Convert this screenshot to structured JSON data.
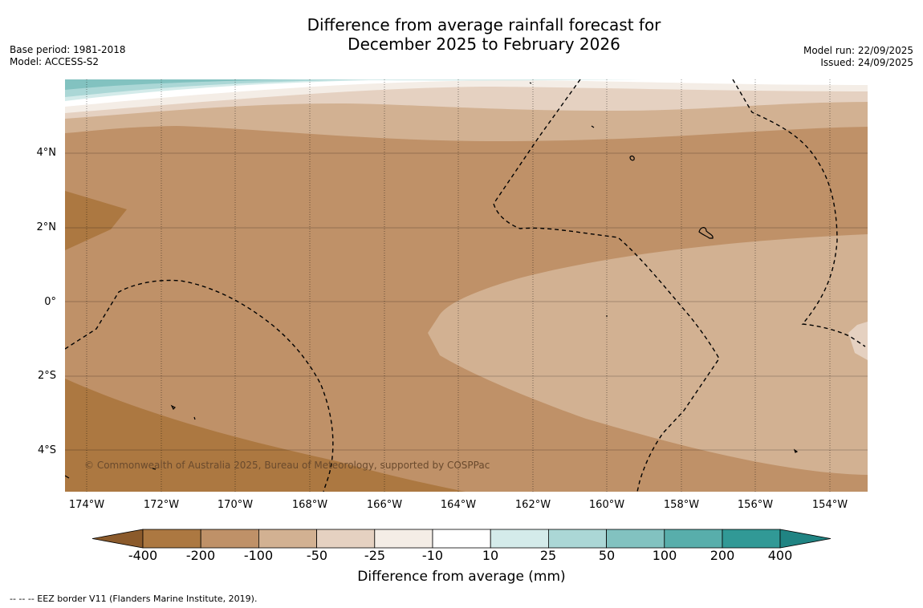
{
  "title": {
    "line1": "Difference from average rainfall forecast for",
    "line2": "December 2025 to February 2026"
  },
  "meta_left": {
    "base_period": "Base period: 1981-2018",
    "model": "Model: ACCESS-S2"
  },
  "meta_right": {
    "model_run": "Model run: 22/09/2025",
    "issued": "Issued: 24/09/2025"
  },
  "axes": {
    "lat_labels": [
      "4°N",
      "2°N",
      "0°",
      "2°S",
      "4°S"
    ],
    "lon_labels": [
      "174°W",
      "172°W",
      "170°W",
      "168°W",
      "166°W",
      "164°W",
      "162°W",
      "160°W",
      "158°W",
      "156°W",
      "154°W"
    ]
  },
  "copyright": "© Commonwealth of Australia 2025, Bureau of Meteorology, supported by COSPPac",
  "colorbar": {
    "title": "Difference from average (mm)",
    "tick_labels": [
      "-400",
      "-200",
      "-100",
      "-50",
      "-25",
      "-10",
      "10",
      "25",
      "50",
      "100",
      "200",
      "400"
    ],
    "colors": {
      "below_neg400": "#8b5a2b",
      "neg400_neg200": "#ac7841",
      "neg200_neg100": "#bf9168",
      "neg100_neg50": "#d2b192",
      "neg50_neg25": "#e5d1c1",
      "neg25_neg10": "#f4ede6",
      "neg10_10": "#ffffff",
      "p10_25": "#d4ebea",
      "p25_50": "#abd7d6",
      "p50_100": "#82c2c0",
      "p100_200": "#58aeab",
      "p200_400": "#319996",
      "above_400": "#208483"
    }
  },
  "footnote": "--  --  -- EEZ border V11 (Flanders Marine Institute, 2019)."
}
